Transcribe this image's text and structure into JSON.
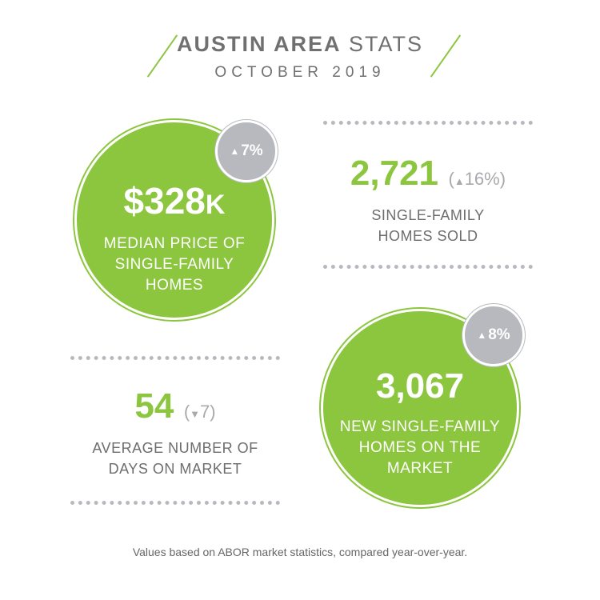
{
  "header": {
    "title_bold": "AUSTIN AREA",
    "title_light": "STATS",
    "subtitle": "OCTOBER 2019"
  },
  "median_price": {
    "value": "$328",
    "suffix": "K",
    "label_lines": [
      "MEDIAN PRICE OF",
      "SINGLE-FAMILY",
      "HOMES"
    ],
    "change": "7%",
    "direction": "up"
  },
  "homes_sold": {
    "value": "2,721",
    "change": "16%",
    "direction": "up",
    "label_lines": [
      "SINGLE-FAMILY",
      "HOMES SOLD"
    ]
  },
  "days_on_market": {
    "value": "54",
    "change": "7",
    "direction": "down",
    "label_lines": [
      "AVERAGE NUMBER OF",
      "DAYS ON MARKET"
    ]
  },
  "new_listings": {
    "value": "3,067",
    "label_lines": [
      "NEW SINGLE-FAMILY",
      "HOMES ON THE",
      "MARKET"
    ],
    "change": "8%",
    "direction": "up"
  },
  "footer": "Values based on ABOR market statistics, compared year-over-year.",
  "colors": {
    "green": "#8cc63f",
    "gray_badge": "#b7b9bf",
    "text": "#6d6d6d"
  },
  "icons": {
    "up": "arrow-up-icon",
    "down": "arrow-down-icon"
  }
}
